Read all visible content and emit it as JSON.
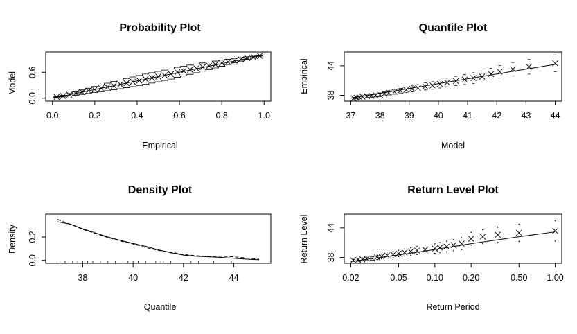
{
  "chart_data": [
    {
      "type": "scatter",
      "title": "Probability Plot",
      "xlabel": "Empirical",
      "ylabel": "Model",
      "xlim": [
        0.0,
        1.0
      ],
      "ylim": [
        0.0,
        1.0
      ],
      "xticks": [
        "0.0",
        "0.2",
        "0.4",
        "0.6",
        "0.8",
        "1.0"
      ],
      "yticks": [
        "0.0",
        "0.6"
      ],
      "series": [
        {
          "values": [
            [
              0.02,
              0.03
            ],
            [
              0.05,
              0.05
            ],
            [
              0.08,
              0.08
            ],
            [
              0.11,
              0.11
            ],
            [
              0.14,
              0.14
            ],
            [
              0.17,
              0.17
            ],
            [
              0.2,
              0.2
            ],
            [
              0.23,
              0.23
            ],
            [
              0.26,
              0.26
            ],
            [
              0.29,
              0.29
            ],
            [
              0.32,
              0.32
            ],
            [
              0.35,
              0.35
            ],
            [
              0.38,
              0.38
            ],
            [
              0.41,
              0.41
            ],
            [
              0.44,
              0.44
            ],
            [
              0.47,
              0.47
            ],
            [
              0.5,
              0.5
            ],
            [
              0.53,
              0.53
            ],
            [
              0.56,
              0.56
            ],
            [
              0.59,
              0.6
            ],
            [
              0.62,
              0.63
            ],
            [
              0.65,
              0.66
            ],
            [
              0.68,
              0.69
            ],
            [
              0.71,
              0.72
            ],
            [
              0.74,
              0.75
            ],
            [
              0.77,
              0.78
            ],
            [
              0.8,
              0.81
            ],
            [
              0.83,
              0.84
            ],
            [
              0.86,
              0.87
            ],
            [
              0.89,
              0.9
            ],
            [
              0.92,
              0.93
            ],
            [
              0.95,
              0.95
            ],
            [
              0.98,
              0.98
            ]
          ]
        }
      ],
      "reference_line": [
        [
          0,
          0
        ],
        [
          1,
          1
        ]
      ],
      "interval_half_width_max": 0.12
    },
    {
      "type": "scatter",
      "title": "Quantile Plot",
      "xlabel": "Model",
      "ylabel": "Empirical",
      "xlim": [
        37.0,
        44.0
      ],
      "ylim": [
        37.4,
        46.2
      ],
      "xticks": [
        "37",
        "38",
        "39",
        "40",
        "41",
        "42",
        "43",
        "44"
      ],
      "yticks": [
        "38",
        "44"
      ],
      "series": [
        {
          "values": [
            [
              37.1,
              37.4
            ],
            [
              37.2,
              37.5
            ],
            [
              37.3,
              37.6
            ],
            [
              37.4,
              37.7
            ],
            [
              37.55,
              37.8
            ],
            [
              37.7,
              37.9
            ],
            [
              37.85,
              38.0
            ],
            [
              38.0,
              38.1
            ],
            [
              38.15,
              38.3
            ],
            [
              38.3,
              38.5
            ],
            [
              38.5,
              38.7
            ],
            [
              38.7,
              38.9
            ],
            [
              38.9,
              39.1
            ],
            [
              39.1,
              39.3
            ],
            [
              39.3,
              39.5
            ],
            [
              39.55,
              39.8
            ],
            [
              39.8,
              40.0
            ],
            [
              40.05,
              40.3
            ],
            [
              40.3,
              40.6
            ],
            [
              40.6,
              40.9
            ],
            [
              40.9,
              41.2
            ],
            [
              41.2,
              41.5
            ],
            [
              41.5,
              41.8
            ],
            [
              41.8,
              42.3
            ],
            [
              42.1,
              42.8
            ],
            [
              42.55,
              43.3
            ],
            [
              43.1,
              43.8
            ],
            [
              44.0,
              44.5
            ]
          ]
        }
      ],
      "reference_line": [
        [
          37.0,
          37.4
        ],
        [
          44.0,
          44.3
        ]
      ]
    },
    {
      "type": "line",
      "title": "Density Plot",
      "xlabel": "Quantile",
      "ylabel": "Density",
      "xlim": [
        36.8,
        45.2
      ],
      "ylim": [
        0.0,
        0.37
      ],
      "xticks": [
        "38",
        "40",
        "42",
        "44"
      ],
      "yticks": [
        "0.0",
        "0.2"
      ],
      "series": [
        {
          "values": [
            [
              37.0,
              0.33
            ],
            [
              37.5,
              0.31
            ],
            [
              38.0,
              0.27
            ],
            [
              38.5,
              0.235
            ],
            [
              39.0,
              0.2
            ],
            [
              39.5,
              0.17
            ],
            [
              40.0,
              0.145
            ],
            [
              40.5,
              0.12
            ],
            [
              41.0,
              0.09
            ],
            [
              41.5,
              0.065
            ],
            [
              42.0,
              0.045
            ],
            [
              42.5,
              0.035
            ],
            [
              43.0,
              0.03
            ],
            [
              43.5,
              0.025
            ],
            [
              44.0,
              0.018
            ],
            [
              44.5,
              0.01
            ],
            [
              45.0,
              0.005
            ]
          ]
        },
        {
          "values": [
            [
              37.0,
              0.35
            ],
            [
              37.5,
              0.31
            ],
            [
              38.0,
              0.265
            ],
            [
              38.5,
              0.23
            ],
            [
              39.0,
              0.195
            ],
            [
              39.5,
              0.165
            ],
            [
              40.0,
              0.14
            ],
            [
              40.5,
              0.11
            ],
            [
              41.0,
              0.085
            ],
            [
              41.5,
              0.07
            ],
            [
              42.0,
              0.05
            ],
            [
              42.5,
              0.04
            ],
            [
              43.0,
              0.035
            ],
            [
              43.5,
              0.035
            ],
            [
              44.0,
              0.03
            ],
            [
              44.5,
              0.02
            ],
            [
              45.0,
              0.01
            ]
          ]
        }
      ],
      "rug": [
        37.1,
        37.3,
        37.45,
        37.6,
        37.8,
        38.0,
        38.2,
        38.4,
        38.7,
        39.0,
        39.3,
        39.6,
        39.8,
        40.0,
        40.2,
        40.5,
        40.9,
        41.1,
        41.2,
        41.5,
        42.3,
        42.6,
        43.2,
        43.9
      ]
    },
    {
      "type": "scatter",
      "title": "Return Level Plot",
      "xlabel": "Return Period",
      "ylabel": "Return Level",
      "xscale": "log",
      "xlim": [
        0.02,
        1.0
      ],
      "ylim": [
        37.4,
        46.2
      ],
      "xticks": [
        "0.02",
        "0.05",
        "0.10",
        "0.20",
        "0.50",
        "1.00"
      ],
      "yticks": [
        "38",
        "44"
      ],
      "series": [
        {
          "values": [
            [
              0.021,
              37.4
            ],
            [
              0.023,
              37.5
            ],
            [
              0.025,
              37.6
            ],
            [
              0.027,
              37.7
            ],
            [
              0.03,
              37.8
            ],
            [
              0.033,
              38.0
            ],
            [
              0.036,
              38.2
            ],
            [
              0.04,
              38.4
            ],
            [
              0.045,
              38.6
            ],
            [
              0.05,
              38.8
            ],
            [
              0.056,
              39.0
            ],
            [
              0.063,
              39.2
            ],
            [
              0.071,
              39.4
            ],
            [
              0.083,
              39.6
            ],
            [
              0.1,
              39.8
            ],
            [
              0.11,
              40.0
            ],
            [
              0.125,
              40.2
            ],
            [
              0.143,
              40.5
            ],
            [
              0.167,
              40.8
            ],
            [
              0.2,
              41.8
            ],
            [
              0.25,
              42.2
            ],
            [
              0.333,
              42.6
            ],
            [
              0.5,
              43.0
            ],
            [
              1.0,
              43.4
            ]
          ]
        }
      ],
      "reference_line_points": [
        [
          0.02,
          37.2
        ],
        [
          0.05,
          38.5
        ],
        [
          0.1,
          39.6
        ],
        [
          0.2,
          40.8
        ],
        [
          0.5,
          42.2
        ],
        [
          1.0,
          43.2
        ]
      ]
    }
  ]
}
